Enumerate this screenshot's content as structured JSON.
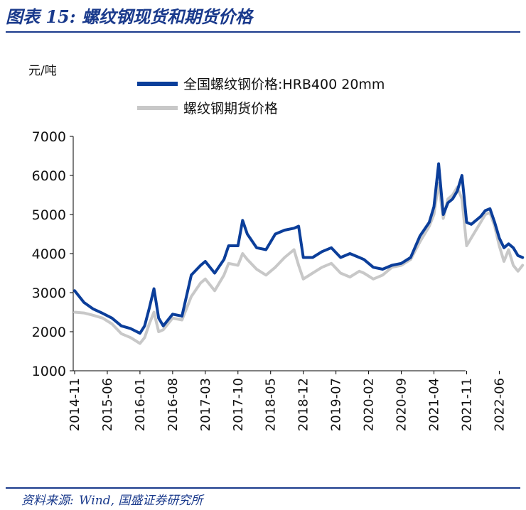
{
  "header": {
    "title": "图表 15:  螺纹钢现货和期货价格"
  },
  "footer": {
    "source_label": "资料来源:",
    "source_text": "Wind, 国盛证券研究所"
  },
  "chart_data": {
    "type": "line",
    "title": "",
    "ylabel": "元/吨",
    "xlabel": "",
    "ylim": [
      1000,
      7000
    ],
    "yticks": [
      "1000",
      "2000",
      "3000",
      "4000",
      "5000",
      "6000",
      "7000"
    ],
    "xticks": [
      "2014-11",
      "2015-06",
      "2016-01",
      "2016-08",
      "2017-03",
      "2017-10",
      "2018-05",
      "2018-12",
      "2019-07",
      "2020-02",
      "2020-09",
      "2021-04",
      "2021-11",
      "2022-06"
    ],
    "legend_position": "top-center",
    "grid": false,
    "series": [
      {
        "name": "全国螺纹钢价格:HRB400 20mm",
        "color": "#0b3e9a",
        "points": [
          [
            "2014-11",
            3050
          ],
          [
            "2015-01",
            2750
          ],
          [
            "2015-03",
            2580
          ],
          [
            "2015-05",
            2470
          ],
          [
            "2015-07",
            2350
          ],
          [
            "2015-09",
            2150
          ],
          [
            "2015-11",
            2080
          ],
          [
            "2016-01",
            1960
          ],
          [
            "2016-02",
            2150
          ],
          [
            "2016-03",
            2600
          ],
          [
            "2016-04",
            3100
          ],
          [
            "2016-05",
            2350
          ],
          [
            "2016-06",
            2150
          ],
          [
            "2016-08",
            2450
          ],
          [
            "2016-10",
            2400
          ],
          [
            "2016-12",
            3450
          ],
          [
            "2017-02",
            3700
          ],
          [
            "2017-03",
            3800
          ],
          [
            "2017-05",
            3500
          ],
          [
            "2017-07",
            3850
          ],
          [
            "2017-08",
            4200
          ],
          [
            "2017-10",
            4200
          ],
          [
            "2017-11",
            4850
          ],
          [
            "2017-12",
            4500
          ],
          [
            "2018-02",
            4150
          ],
          [
            "2018-04",
            4100
          ],
          [
            "2018-06",
            4500
          ],
          [
            "2018-08",
            4600
          ],
          [
            "2018-10",
            4650
          ],
          [
            "2018-11",
            4700
          ],
          [
            "2018-12",
            3900
          ],
          [
            "2019-02",
            3900
          ],
          [
            "2019-04",
            4050
          ],
          [
            "2019-06",
            4150
          ],
          [
            "2019-08",
            3900
          ],
          [
            "2019-10",
            4000
          ],
          [
            "2019-12",
            3900
          ],
          [
            "2020-01",
            3850
          ],
          [
            "2020-03",
            3650
          ],
          [
            "2020-05",
            3600
          ],
          [
            "2020-07",
            3700
          ],
          [
            "2020-09",
            3750
          ],
          [
            "2020-11",
            3900
          ],
          [
            "2021-01",
            4450
          ],
          [
            "2021-03",
            4800
          ],
          [
            "2021-04",
            5200
          ],
          [
            "2021-05",
            6300
          ],
          [
            "2021-06",
            5000
          ],
          [
            "2021-07",
            5300
          ],
          [
            "2021-08",
            5400
          ],
          [
            "2021-09",
            5600
          ],
          [
            "2021-10",
            6000
          ],
          [
            "2021-11",
            4800
          ],
          [
            "2021-12",
            4750
          ],
          [
            "2022-02",
            4950
          ],
          [
            "2022-03",
            5100
          ],
          [
            "2022-04",
            5150
          ],
          [
            "2022-05",
            4800
          ],
          [
            "2022-06",
            4400
          ],
          [
            "2022-07",
            4150
          ],
          [
            "2022-08",
            4250
          ],
          [
            "2022-09",
            4150
          ],
          [
            "2022-10",
            3950
          ],
          [
            "2022-11",
            3900
          ]
        ]
      },
      {
        "name": "螺纹钢期货价格",
        "color": "#c8c8c8",
        "points": [
          [
            "2014-11",
            2500
          ],
          [
            "2015-01",
            2480
          ],
          [
            "2015-03",
            2420
          ],
          [
            "2015-05",
            2350
          ],
          [
            "2015-07",
            2200
          ],
          [
            "2015-09",
            1950
          ],
          [
            "2015-11",
            1850
          ],
          [
            "2016-01",
            1700
          ],
          [
            "2016-02",
            1850
          ],
          [
            "2016-03",
            2200
          ],
          [
            "2016-04",
            2500
          ],
          [
            "2016-05",
            2000
          ],
          [
            "2016-06",
            2050
          ],
          [
            "2016-08",
            2350
          ],
          [
            "2016-10",
            2300
          ],
          [
            "2016-12",
            2900
          ],
          [
            "2017-02",
            3250
          ],
          [
            "2017-03",
            3350
          ],
          [
            "2017-05",
            3050
          ],
          [
            "2017-07",
            3450
          ],
          [
            "2017-08",
            3750
          ],
          [
            "2017-10",
            3700
          ],
          [
            "2017-11",
            4000
          ],
          [
            "2017-12",
            3850
          ],
          [
            "2018-02",
            3600
          ],
          [
            "2018-04",
            3450
          ],
          [
            "2018-06",
            3650
          ],
          [
            "2018-08",
            3900
          ],
          [
            "2018-10",
            4100
          ],
          [
            "2018-11",
            3700
          ],
          [
            "2018-12",
            3350
          ],
          [
            "2019-02",
            3500
          ],
          [
            "2019-04",
            3650
          ],
          [
            "2019-06",
            3750
          ],
          [
            "2019-08",
            3500
          ],
          [
            "2019-10",
            3400
          ],
          [
            "2019-12",
            3550
          ],
          [
            "2020-01",
            3500
          ],
          [
            "2020-03",
            3350
          ],
          [
            "2020-05",
            3450
          ],
          [
            "2020-07",
            3650
          ],
          [
            "2020-09",
            3700
          ],
          [
            "2020-11",
            3850
          ],
          [
            "2021-01",
            4300
          ],
          [
            "2021-03",
            4700
          ],
          [
            "2021-04",
            5000
          ],
          [
            "2021-05",
            5800
          ],
          [
            "2021-06",
            4900
          ],
          [
            "2021-07",
            5400
          ],
          [
            "2021-08",
            5500
          ],
          [
            "2021-09",
            5700
          ],
          [
            "2021-10",
            5400
          ],
          [
            "2021-11",
            4200
          ],
          [
            "2021-12",
            4400
          ],
          [
            "2022-02",
            4800
          ],
          [
            "2022-03",
            5000
          ],
          [
            "2022-04",
            5050
          ],
          [
            "2022-05",
            4700
          ],
          [
            "2022-06",
            4200
          ],
          [
            "2022-07",
            3800
          ],
          [
            "2022-08",
            4100
          ],
          [
            "2022-09",
            3700
          ],
          [
            "2022-10",
            3550
          ],
          [
            "2022-11",
            3700
          ]
        ]
      }
    ]
  }
}
